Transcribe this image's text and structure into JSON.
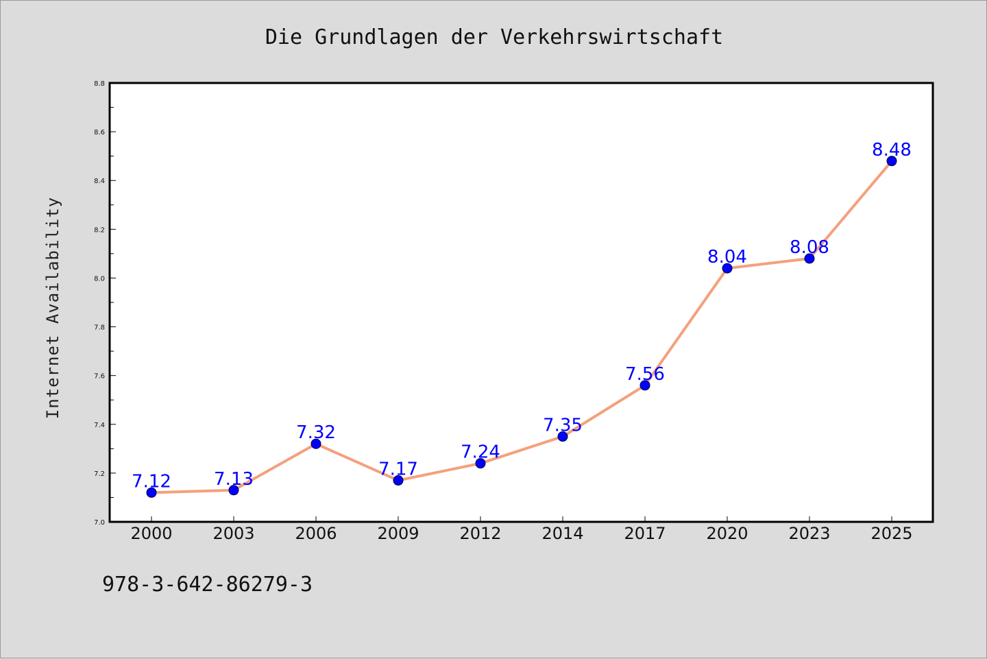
{
  "chart_data": {
    "type": "line",
    "title": "Die Grundlagen der Verkehrswirtschaft",
    "xlabel": "",
    "ylabel": "Internet Availability",
    "categories": [
      "2000",
      "2003",
      "2006",
      "2009",
      "2012",
      "2014",
      "2017",
      "2020",
      "2023",
      "2025"
    ],
    "series": [
      {
        "values": [
          7.12,
          7.13,
          7.32,
          7.17,
          7.24,
          7.35,
          7.56,
          8.04,
          8.08,
          8.48
        ]
      }
    ],
    "data_labels": [
      "7.12",
      "7.13",
      "7.32",
      "7.17",
      "7.24",
      "7.35",
      "7.56",
      "8.04",
      "8.08",
      "8.48"
    ],
    "ylim": [
      7.0,
      8.8
    ],
    "yticks": [
      "7.0",
      "7.2",
      "7.4",
      "7.6",
      "7.8",
      "8.0",
      "8.2",
      "8.4",
      "8.6",
      "8.8"
    ],
    "grid": false,
    "colors": {
      "line": "#f4a07c",
      "marker": "#0000ff",
      "label": "#0000ff",
      "background": "#dcdcdc",
      "plot_bg": "#ffffff"
    }
  },
  "footer": {
    "text": "978-3-642-86279-3"
  }
}
